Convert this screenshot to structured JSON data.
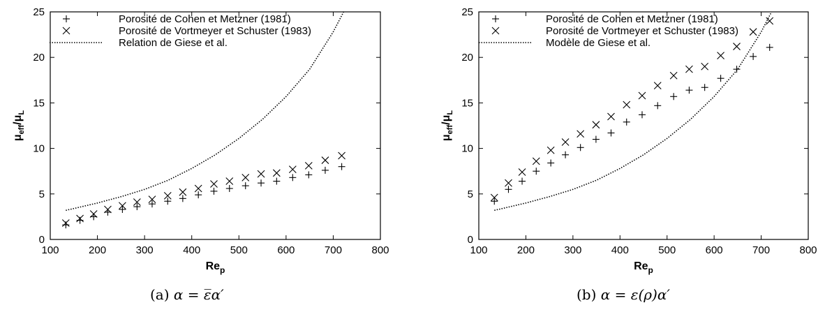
{
  "chart_data": [
    {
      "type": "scatter",
      "panel": "a",
      "xlabel": "Re_p",
      "ylabel": "μ_eff/μ_L",
      "xlim": [
        100,
        800
      ],
      "ylim": [
        0,
        25
      ],
      "xticks": [
        100,
        200,
        300,
        400,
        500,
        600,
        700,
        800
      ],
      "yticks": [
        0,
        5,
        10,
        15,
        20,
        25
      ],
      "grid": false,
      "legend_position": "top-left",
      "series": [
        {
          "name": "Porosité de Cohen et Metzner (1981)",
          "marker": "plus",
          "x": [
            133,
            163,
            192,
            222,
            253,
            284,
            316,
            349,
            381,
            414,
            447,
            480,
            514,
            547,
            580,
            614,
            648,
            683,
            718
          ],
          "y": [
            1.6,
            2.1,
            2.5,
            3.0,
            3.3,
            3.6,
            3.9,
            4.2,
            4.5,
            4.9,
            5.3,
            5.6,
            5.9,
            6.2,
            6.4,
            6.8,
            7.1,
            7.6,
            8.0
          ]
        },
        {
          "name": "Porosité de Vortmeyer et Schuster (1983)",
          "marker": "cross",
          "x": [
            133,
            163,
            192,
            222,
            253,
            284,
            316,
            349,
            381,
            414,
            447,
            480,
            514,
            547,
            580,
            614,
            648,
            683,
            718
          ],
          "y": [
            1.8,
            2.3,
            2.8,
            3.3,
            3.7,
            4.1,
            4.4,
            4.8,
            5.2,
            5.6,
            6.1,
            6.4,
            6.8,
            7.2,
            7.3,
            7.7,
            8.1,
            8.7,
            9.2
          ]
        },
        {
          "name": "Relation de Giese et al.",
          "marker": "dotted-line",
          "x": [
            133,
            150,
            200,
            250,
            300,
            350,
            400,
            450,
            500,
            550,
            600,
            650,
            700,
            722
          ],
          "y": [
            3.2,
            3.4,
            4.0,
            4.7,
            5.5,
            6.5,
            7.8,
            9.3,
            11.1,
            13.2,
            15.7,
            18.7,
            22.8,
            25.0
          ]
        }
      ]
    },
    {
      "type": "scatter",
      "panel": "b",
      "xlabel": "Re_p",
      "ylabel": "μ_eff/μ_L",
      "xlim": [
        100,
        800
      ],
      "ylim": [
        0,
        25
      ],
      "xticks": [
        100,
        200,
        300,
        400,
        500,
        600,
        700,
        800
      ],
      "yticks": [
        0,
        5,
        10,
        15,
        20,
        25
      ],
      "grid": false,
      "legend_position": "top-left",
      "series": [
        {
          "name": "Porosité de Cohen et Metzner (1981)",
          "marker": "plus",
          "x": [
            133,
            163,
            192,
            222,
            253,
            284,
            316,
            349,
            381,
            414,
            447,
            480,
            514,
            547,
            580,
            614,
            648,
            683,
            718
          ],
          "y": [
            4.2,
            5.5,
            6.4,
            7.5,
            8.4,
            9.3,
            10.1,
            11.0,
            11.7,
            12.9,
            13.7,
            14.7,
            15.7,
            16.4,
            16.7,
            17.7,
            18.7,
            20.1,
            21.1
          ]
        },
        {
          "name": "Porosité de Vortmeyer et Schuster (1983)",
          "marker": "cross",
          "x": [
            133,
            163,
            192,
            222,
            253,
            284,
            316,
            349,
            381,
            414,
            447,
            480,
            514,
            547,
            580,
            614,
            648,
            683,
            718
          ],
          "y": [
            4.6,
            6.2,
            7.4,
            8.6,
            9.8,
            10.7,
            11.6,
            12.6,
            13.5,
            14.8,
            15.8,
            16.9,
            18.0,
            18.7,
            19.0,
            20.2,
            21.2,
            22.8,
            24.0
          ]
        },
        {
          "name": "Modèle de Giese et al.",
          "marker": "dotted-line",
          "x": [
            133,
            150,
            200,
            250,
            300,
            350,
            400,
            450,
            500,
            550,
            600,
            650,
            700,
            722
          ],
          "y": [
            3.2,
            3.4,
            4.0,
            4.7,
            5.5,
            6.5,
            7.8,
            9.3,
            11.1,
            13.2,
            15.7,
            18.7,
            22.8,
            25.0
          ]
        }
      ]
    }
  ],
  "captions": {
    "a_prefix": "(a)",
    "a_formula": "α = ε̅α′",
    "b_prefix": "(b)",
    "b_formula": "α = ε(ρ)α′"
  }
}
